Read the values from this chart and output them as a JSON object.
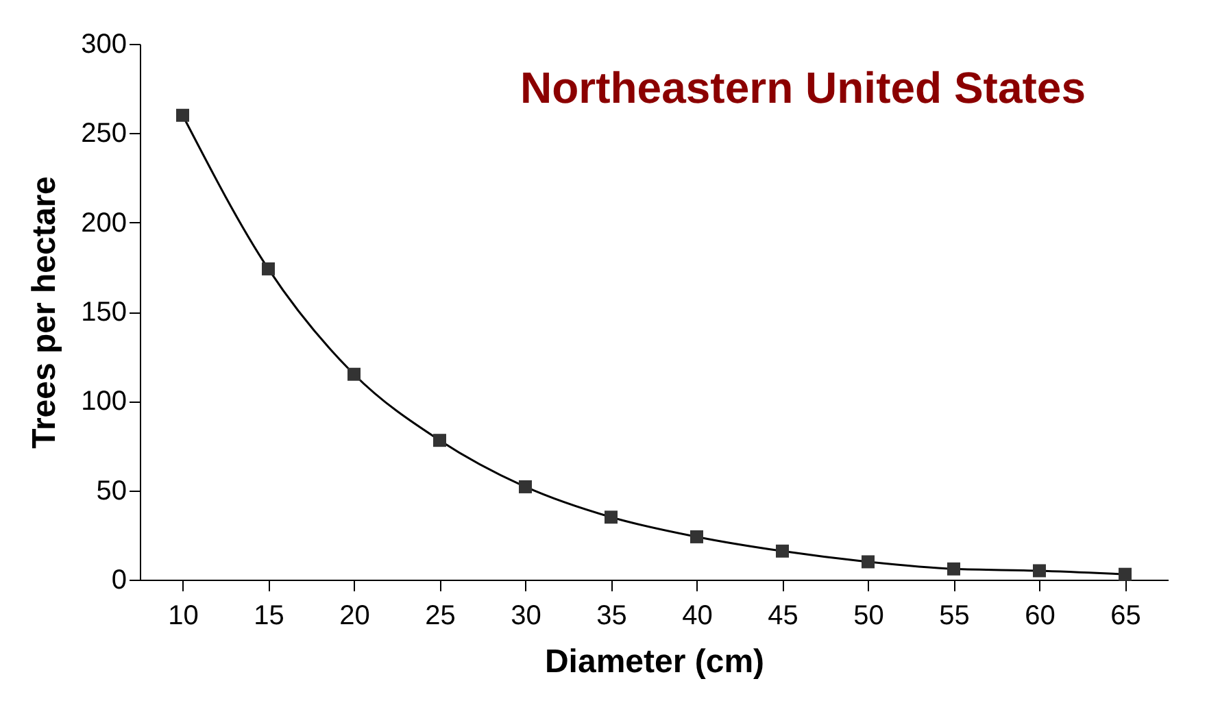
{
  "chart_data": {
    "type": "line",
    "title": "Northeastern United States",
    "xlabel": "Diameter (cm)",
    "ylabel": "Trees per hectare",
    "categories": [
      "10",
      "15",
      "20",
      "25",
      "30",
      "35",
      "40",
      "45",
      "50",
      "55",
      "60",
      "65"
    ],
    "series": [
      {
        "color": "#000000",
        "values": [
          260,
          174,
          115,
          78,
          52,
          35,
          24,
          16,
          10,
          6,
          5,
          3
        ]
      }
    ],
    "ylim": [
      0,
      300
    ],
    "yticks": [
      0,
      50,
      100,
      150,
      200,
      250,
      300
    ],
    "grid": false,
    "marker": "square",
    "line_style": "solid"
  }
}
